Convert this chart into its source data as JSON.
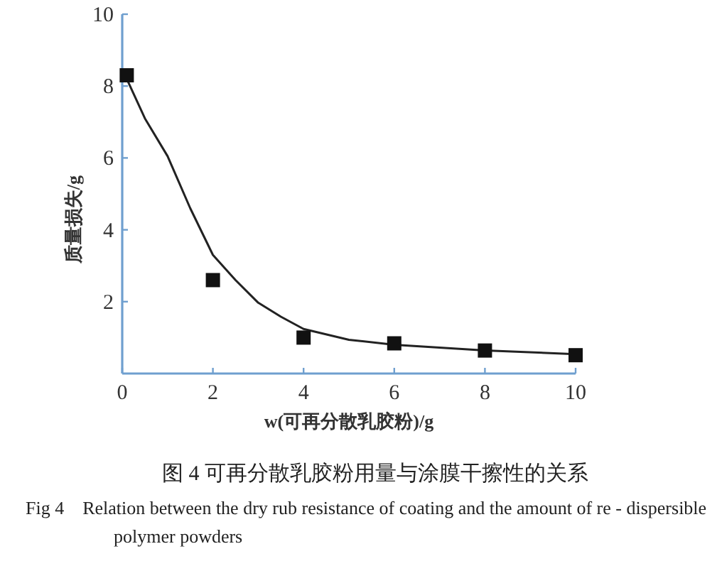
{
  "chart_data": {
    "type": "scatter",
    "title": "图 4   可再分散乳胶粉用量与涂膜干擦性的关系",
    "subtitle": "Fig 4    Relation between the dry rub resistance of coating and the amount of re - dispersible polymer powders",
    "xlabel": "w(可再分散乳胶粉)/g",
    "ylabel": "质量损失/g",
    "xlim": [
      0,
      10
    ],
    "ylim": [
      0,
      10
    ],
    "xticks": [
      0,
      2,
      4,
      6,
      8,
      10
    ],
    "yticks": [
      2,
      4,
      6,
      8,
      10
    ],
    "grid": false,
    "series": [
      {
        "marker": "square",
        "color": "#111111",
        "x": [
          0.1,
          2,
          4,
          6,
          8,
          10
        ],
        "values": [
          8.3,
          2.6,
          1.0,
          0.84,
          0.64,
          0.51
        ]
      },
      {
        "type": "line",
        "marker": "none",
        "line_style": "solid",
        "color": "#222222",
        "x": [
          0.1,
          0.5,
          1,
          1.5,
          2,
          2.5,
          3,
          3.5,
          4,
          5,
          6,
          8,
          10
        ],
        "values": [
          8.2,
          7.1,
          6.05,
          4.6,
          3.3,
          2.6,
          1.97,
          1.58,
          1.24,
          0.94,
          0.8,
          0.64,
          0.54
        ]
      }
    ]
  }
}
